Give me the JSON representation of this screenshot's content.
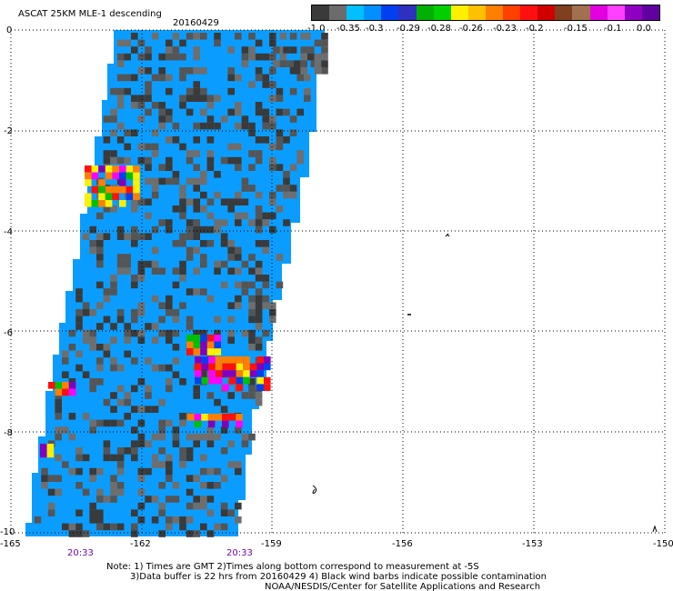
{
  "header": {
    "title": "ASCAT 25KM MLE-1 descending",
    "date": "20160429"
  },
  "colorbar": {
    "colors": [
      "#3a3a3a",
      "#6c6c6c",
      "#00c0ff",
      "#0090ff",
      "#0040f0",
      "#3030c0",
      "#00b000",
      "#00d000",
      "#fff000",
      "#ffc000",
      "#ff8000",
      "#ff4000",
      "#ff1010",
      "#d00000",
      "#804020",
      "#a07050",
      "#e000e0",
      "#ff40ff",
      "#9000c0",
      "#6000a0"
    ],
    "labels": [
      "-1.0",
      "-0.35",
      "-0.3",
      "-0.29",
      "-0.28",
      "-0.26",
      "-0.23",
      "-0.2",
      "-0.15",
      "-0.1",
      "0.0"
    ]
  },
  "axes": {
    "y_ticks": [
      "0",
      "-2",
      "-4",
      "-6",
      "-8",
      "-10"
    ],
    "x_ticks": [
      "-165",
      "-162",
      "-159",
      "-156",
      "-153",
      "-150"
    ]
  },
  "times": [
    "20:33",
    "20:33"
  ],
  "notes": {
    "line1": "Note: 1) Times are GMT 2)Times along bottom correspond to measurement at -5S",
    "line2": "3)Data buffer is 22 hrs from 20160429 4) Black wind barbs indicate possible contamination",
    "line3": "NOAA/NESDIS/Center for Satellite Applications and Research"
  },
  "palette": {
    "swath_blue": "#0a9dff",
    "colors": [
      "#3a3a3a",
      "#555555",
      "#6e6e6e",
      "#ff1010",
      "#fff000",
      "#00c000",
      "#ff00ff",
      "#0040f0",
      "#ff8000",
      "#8000c0"
    ]
  }
}
